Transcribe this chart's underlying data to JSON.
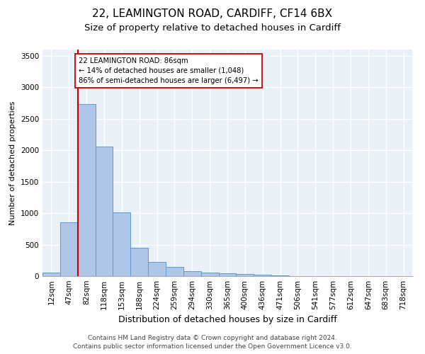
{
  "title1": "22, LEAMINGTON ROAD, CARDIFF, CF14 6BX",
  "title2": "Size of property relative to detached houses in Cardiff",
  "xlabel": "Distribution of detached houses by size in Cardiff",
  "ylabel": "Number of detached properties",
  "footer1": "Contains HM Land Registry data © Crown copyright and database right 2024.",
  "footer2": "Contains public sector information licensed under the Open Government Licence v3.0.",
  "categories": [
    "12sqm",
    "47sqm",
    "82sqm",
    "118sqm",
    "153sqm",
    "188sqm",
    "224sqm",
    "259sqm",
    "294sqm",
    "330sqm",
    "365sqm",
    "400sqm",
    "436sqm",
    "471sqm",
    "506sqm",
    "541sqm",
    "577sqm",
    "612sqm",
    "647sqm",
    "683sqm",
    "718sqm"
  ],
  "values": [
    60,
    860,
    2730,
    2060,
    1010,
    450,
    230,
    150,
    80,
    60,
    50,
    35,
    20,
    10,
    5,
    3,
    2,
    2,
    1,
    1,
    1
  ],
  "bar_color": "#aec6e8",
  "bar_edge_color": "#5b9bd5",
  "vline_x_index": 2,
  "vline_color": "#cc0000",
  "annotation_line1": "22 LEAMINGTON ROAD: 86sqm",
  "annotation_line2": "← 14% of detached houses are smaller (1,048)",
  "annotation_line3": "86% of semi-detached houses are larger (6,497) →",
  "ylim": [
    0,
    3600
  ],
  "yticks": [
    0,
    500,
    1000,
    1500,
    2000,
    2500,
    3000,
    3500
  ],
  "bg_color": "#eaf0f8",
  "grid_color": "#ffffff",
  "title1_fontsize": 11,
  "title2_fontsize": 9.5,
  "xlabel_fontsize": 9,
  "ylabel_fontsize": 8,
  "tick_fontsize": 7.5,
  "footer_fontsize": 6.5
}
